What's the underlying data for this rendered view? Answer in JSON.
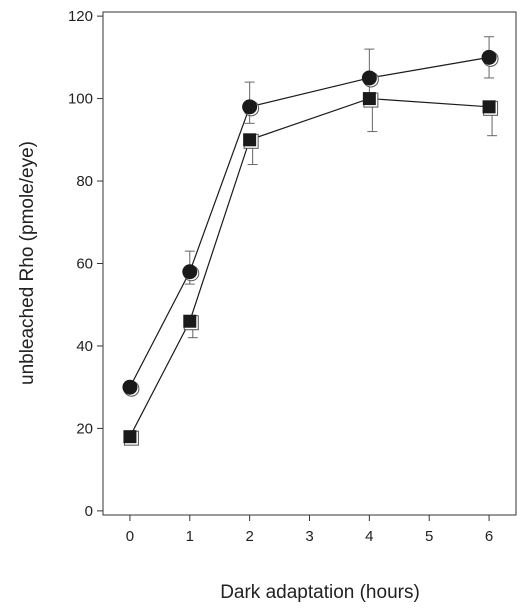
{
  "chart_data": {
    "type": "line",
    "title": "",
    "xlabel": "Dark adaptation (hours)",
    "ylabel": "unbleached Rho (pmole/eye)",
    "xlim": [
      -0.45,
      6.45
    ],
    "ylim": [
      -1,
      121
    ],
    "x_ticks": [
      0,
      1,
      2,
      3,
      4,
      5,
      6
    ],
    "y_ticks": [
      0,
      20,
      40,
      60,
      80,
      100,
      120
    ],
    "x_tick_labels": [
      "0",
      "1",
      "2",
      "3",
      "4",
      "5",
      "6"
    ],
    "y_tick_labels": [
      "0",
      "20",
      "40",
      "60",
      "80",
      "100",
      "120"
    ],
    "grid": false,
    "legend": "none",
    "series": [
      {
        "marker": "circle",
        "color": "#1a1a1a",
        "x": [
          0,
          1,
          2,
          4,
          6
        ],
        "y": [
          30,
          58,
          98,
          105,
          110
        ],
        "err_lo": [
          0,
          3,
          4,
          6,
          5
        ],
        "err_hi": [
          0,
          5,
          6,
          7,
          5
        ]
      },
      {
        "marker": "square",
        "color": "#1a1a1a",
        "x": [
          0,
          1,
          2,
          4,
          6
        ],
        "y": [
          18,
          46,
          90,
          100,
          98
        ],
        "err_lo": [
          0,
          4,
          6,
          8,
          7
        ],
        "err_hi": [
          0,
          0,
          0,
          0,
          0
        ]
      }
    ]
  }
}
